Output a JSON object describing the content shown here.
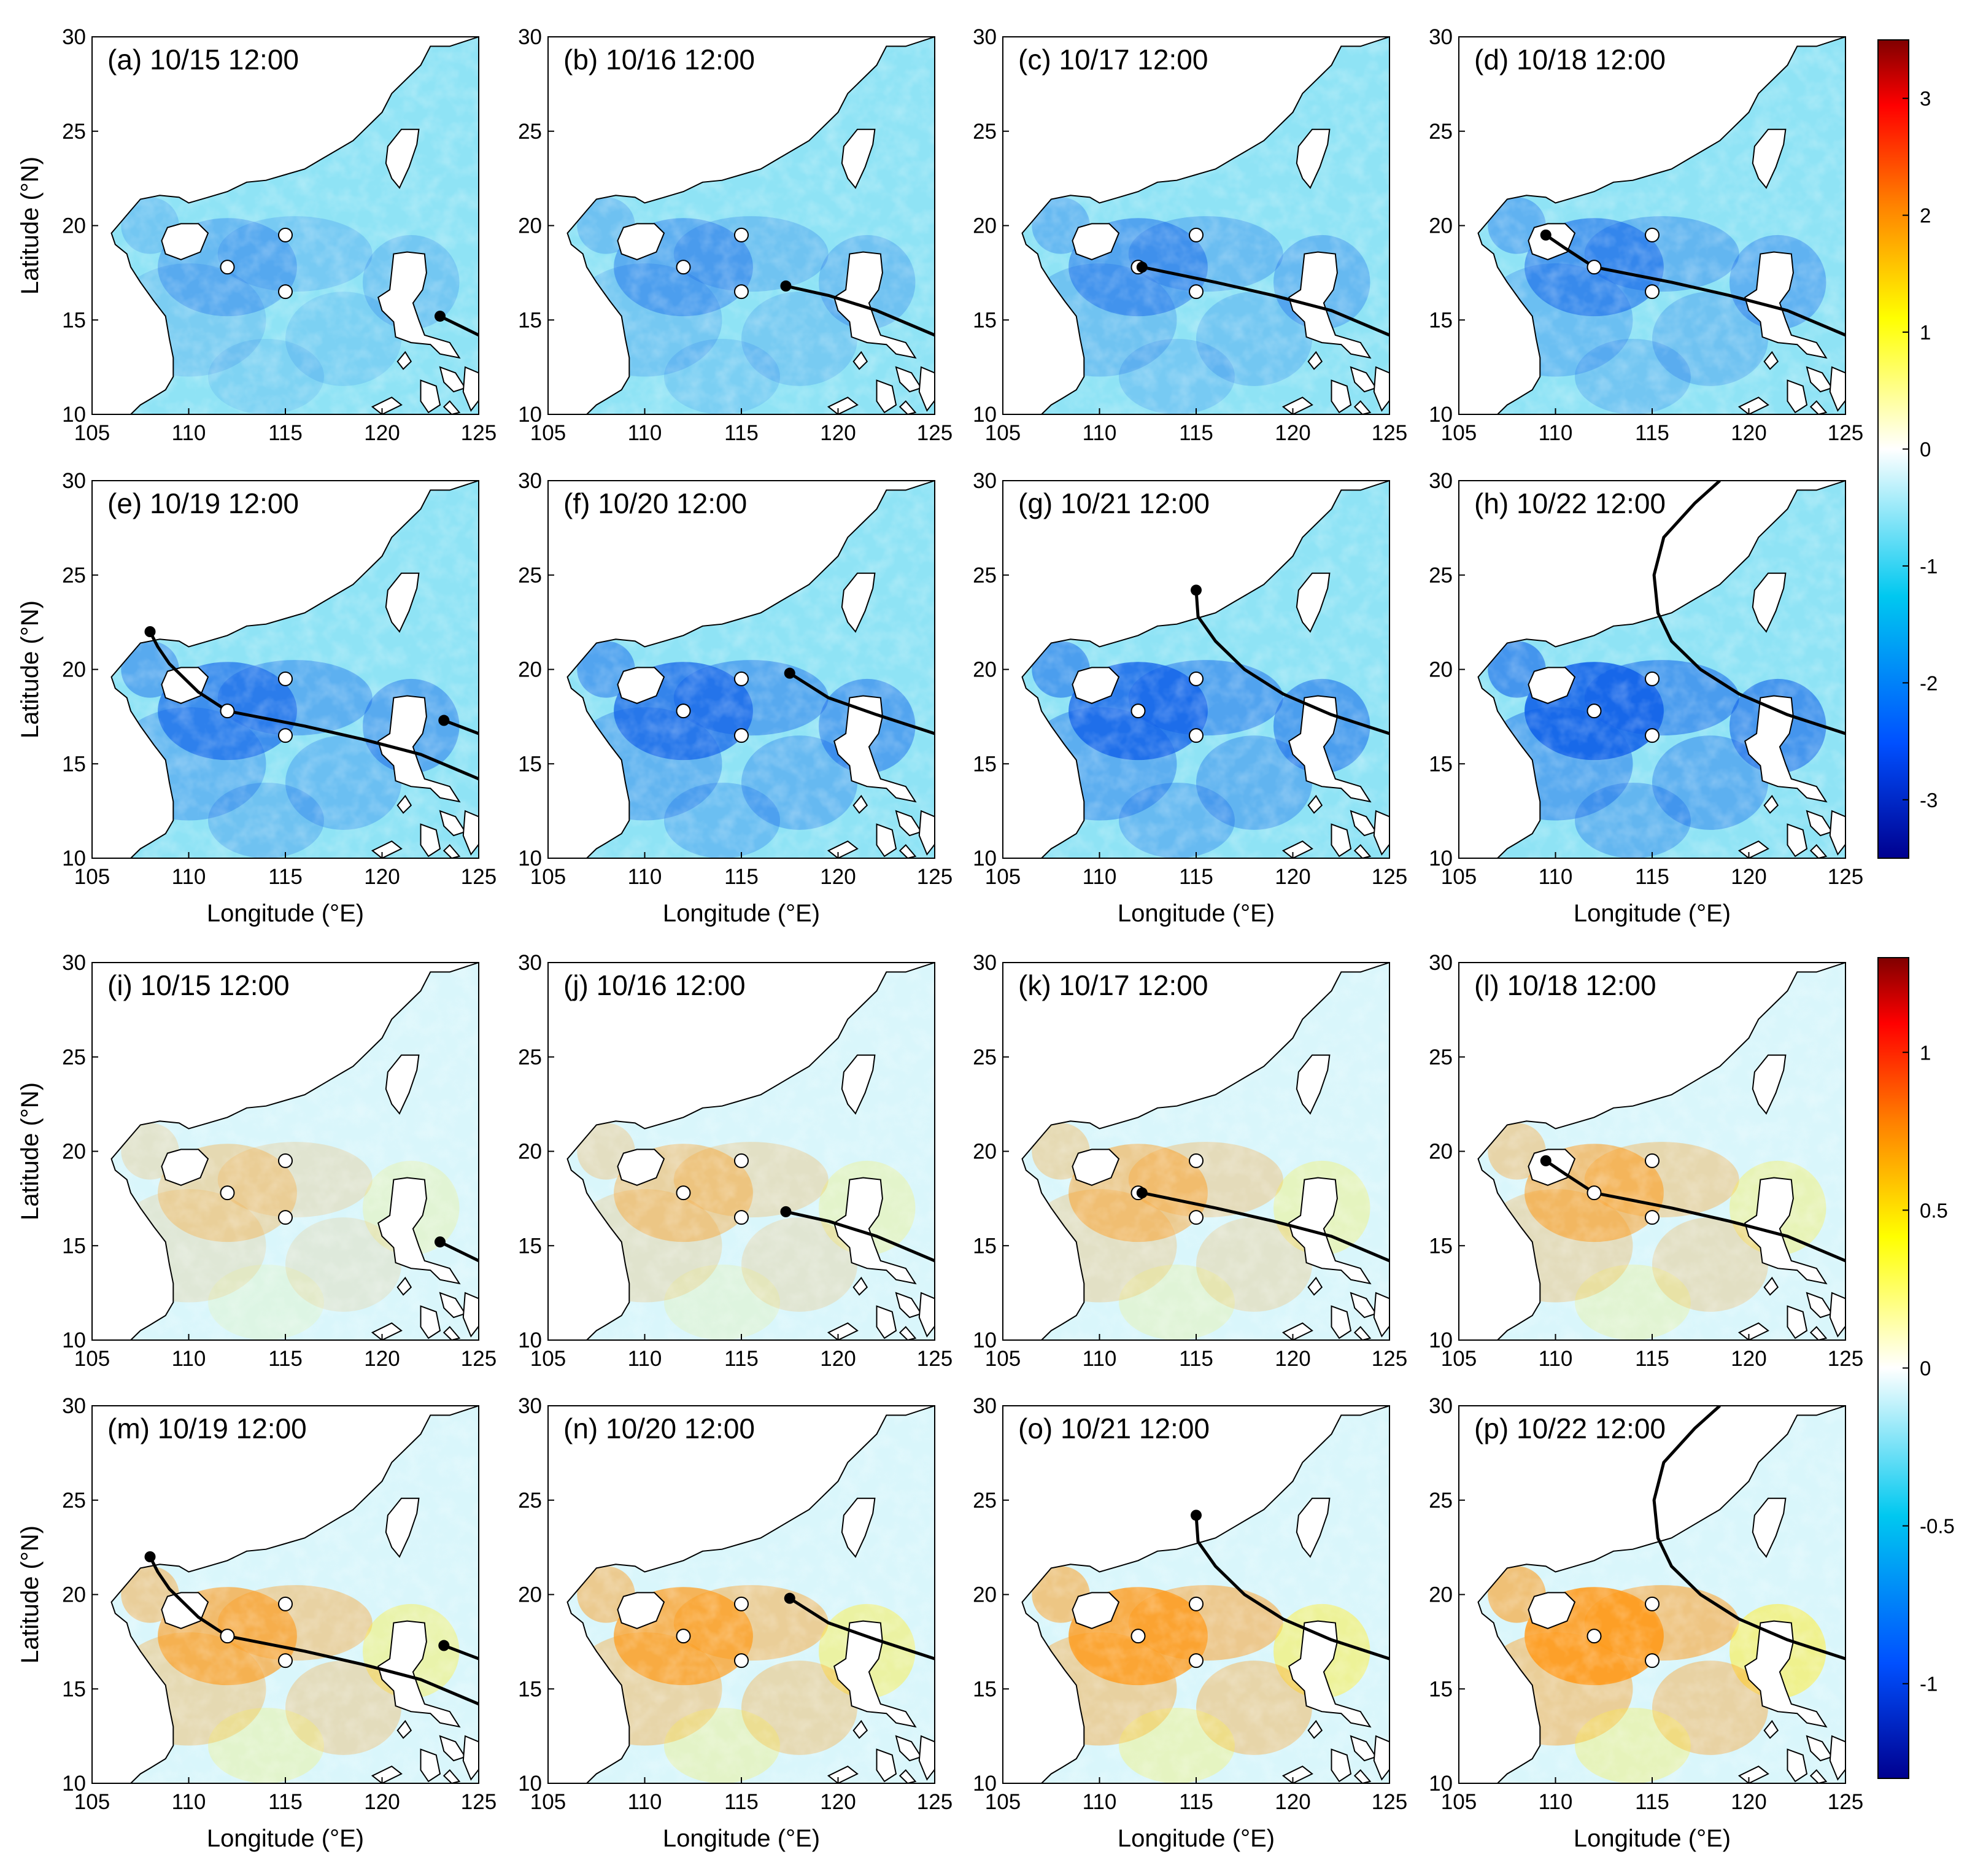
{
  "chart_data": {
    "type": "heatmap",
    "x_axis": {
      "label": "Longitude (°E)",
      "range": [
        105,
        125
      ],
      "ticks": [
        "105",
        "110",
        "115",
        "120",
        "125"
      ]
    },
    "y_axis": {
      "label": "Latitude (°N)",
      "range": [
        10,
        30
      ],
      "ticks": [
        "10",
        "15",
        "20",
        "25",
        "30"
      ]
    },
    "groups": [
      {
        "id": "top",
        "colorbar": {
          "range": [
            -3.5,
            3.5
          ],
          "ticks": [
            "3",
            "2",
            "1",
            "0",
            "-1",
            "-2",
            "-3"
          ]
        },
        "panels": [
          {
            "label": "(a) 10/15 12:00",
            "track": [
              [
                125,
                14.2
              ],
              [
                123,
                15.2
              ]
            ],
            "typhoon": [
              123,
              15.2
            ]
          },
          {
            "label": "(b) 10/16 12:00",
            "track": [
              [
                125,
                14.2
              ],
              [
                122,
                15.5
              ],
              [
                119.5,
                16.3
              ],
              [
                117.3,
                16.8
              ]
            ],
            "typhoon": [
              117.3,
              16.8
            ]
          },
          {
            "label": "(c) 10/17 12:00",
            "track": [
              [
                125,
                14.2
              ],
              [
                122,
                15.5
              ],
              [
                119,
                16.3
              ],
              [
                116,
                17
              ],
              [
                112.2,
                17.8
              ]
            ],
            "typhoon": [
              112.2,
              17.8
            ]
          },
          {
            "label": "(d) 10/18 12:00",
            "track": [
              [
                125,
                14.2
              ],
              [
                122,
                15.5
              ],
              [
                119,
                16.3
              ],
              [
                116,
                17
              ],
              [
                112,
                17.8
              ],
              [
                110.5,
                18.8
              ],
              [
                109.5,
                19.5
              ]
            ],
            "typhoon": [
              109.5,
              19.5
            ]
          },
          {
            "label": "(e) 10/19 12:00",
            "track": [
              [
                125,
                14.2
              ],
              [
                122,
                15.5
              ],
              [
                119,
                16.3
              ],
              [
                116,
                17
              ],
              [
                112,
                17.8
              ],
              [
                110.5,
                18.8
              ],
              [
                109,
                20.3
              ],
              [
                108.4,
                21.2
              ],
              [
                108,
                22
              ]
            ],
            "track2": [
              [
                125,
                16.6
              ],
              [
                123.2,
                17.3
              ]
            ],
            "typhoon": [
              108,
              22
            ],
            "typhoon2": [
              123.2,
              17.3
            ]
          },
          {
            "label": "(f) 10/20 12:00",
            "track": [
              [
                125,
                16.6
              ],
              [
                122,
                17.6
              ],
              [
                119.5,
                18.5
              ],
              [
                117.5,
                19.8
              ]
            ],
            "typhoon": [
              117.5,
              19.8
            ]
          },
          {
            "label": "(g) 10/21 12:00",
            "track": [
              [
                125,
                16.6
              ],
              [
                122,
                17.6
              ],
              [
                119.5,
                18.7
              ],
              [
                117.5,
                20
              ],
              [
                116,
                21.5
              ],
              [
                115.1,
                22.8
              ],
              [
                115,
                24.2
              ]
            ],
            "typhoon": [
              115,
              24.2
            ]
          },
          {
            "label": "(h) 10/22 12:00",
            "track": [
              [
                125,
                16.6
              ],
              [
                122,
                17.6
              ],
              [
                119.5,
                18.7
              ],
              [
                117.5,
                20
              ],
              [
                116,
                21.5
              ],
              [
                115.3,
                23
              ],
              [
                115.1,
                25
              ],
              [
                115.6,
                27
              ],
              [
                117.2,
                28.8
              ],
              [
                118.5,
                30
              ]
            ]
          }
        ]
      },
      {
        "id": "bottom",
        "colorbar": {
          "range": [
            -1.3,
            1.3
          ],
          "ticks": [
            "1",
            "0.5",
            "0",
            "-0.5",
            "-1"
          ]
        },
        "panels": [
          {
            "label": "(i) 10/15 12:00",
            "track": [
              [
                125,
                14.2
              ],
              [
                123,
                15.2
              ]
            ],
            "typhoon": [
              123,
              15.2
            ]
          },
          {
            "label": "(j) 10/16 12:00",
            "track": [
              [
                125,
                14.2
              ],
              [
                122,
                15.5
              ],
              [
                119.5,
                16.3
              ],
              [
                117.3,
                16.8
              ]
            ],
            "typhoon": [
              117.3,
              16.8
            ]
          },
          {
            "label": "(k) 10/17 12:00",
            "track": [
              [
                125,
                14.2
              ],
              [
                122,
                15.5
              ],
              [
                119,
                16.3
              ],
              [
                116,
                17
              ],
              [
                112.2,
                17.8
              ]
            ],
            "typhoon": [
              112.2,
              17.8
            ]
          },
          {
            "label": "(l) 10/18 12:00",
            "track": [
              [
                125,
                14.2
              ],
              [
                122,
                15.5
              ],
              [
                119,
                16.3
              ],
              [
                116,
                17
              ],
              [
                112,
                17.8
              ],
              [
                110.5,
                18.8
              ],
              [
                109.5,
                19.5
              ]
            ],
            "typhoon": [
              109.5,
              19.5
            ]
          },
          {
            "label": "(m) 10/19 12:00",
            "track": [
              [
                125,
                14.2
              ],
              [
                122,
                15.5
              ],
              [
                119,
                16.3
              ],
              [
                116,
                17
              ],
              [
                112,
                17.8
              ],
              [
                110.5,
                18.8
              ],
              [
                109,
                20.3
              ],
              [
                108.4,
                21.2
              ],
              [
                108,
                22
              ]
            ],
            "track2": [
              [
                125,
                16.6
              ],
              [
                123.2,
                17.3
              ]
            ],
            "typhoon": [
              108,
              22
            ],
            "typhoon2": [
              123.2,
              17.3
            ]
          },
          {
            "label": "(n) 10/20 12:00",
            "track": [
              [
                125,
                16.6
              ],
              [
                122,
                17.6
              ],
              [
                119.5,
                18.5
              ],
              [
                117.5,
                19.8
              ]
            ],
            "typhoon": [
              117.5,
              19.8
            ]
          },
          {
            "label": "(o) 10/21 12:00",
            "track": [
              [
                125,
                16.6
              ],
              [
                122,
                17.6
              ],
              [
                119.5,
                18.7
              ],
              [
                117.5,
                20
              ],
              [
                116,
                21.5
              ],
              [
                115.1,
                22.8
              ],
              [
                115,
                24.2
              ]
            ],
            "typhoon": [
              115,
              24.2
            ]
          },
          {
            "label": "(p) 10/22 12:00",
            "track": [
              [
                125,
                16.6
              ],
              [
                122,
                17.6
              ],
              [
                119.5,
                18.7
              ],
              [
                117.5,
                20
              ],
              [
                116,
                21.5
              ],
              [
                115.3,
                23
              ],
              [
                115.1,
                25
              ],
              [
                115.6,
                27
              ],
              [
                117.2,
                28.8
              ],
              [
                118.5,
                30
              ]
            ]
          }
        ]
      }
    ],
    "stations": [
      [
        112,
        17.8
      ],
      [
        115,
        19.5
      ],
      [
        115,
        16.5
      ]
    ],
    "colormap": [
      "#00008f",
      "#0050ff",
      "#00c8f0",
      "#ffffff",
      "#ffff00",
      "#ff8000",
      "#ff0000",
      "#800000"
    ]
  }
}
